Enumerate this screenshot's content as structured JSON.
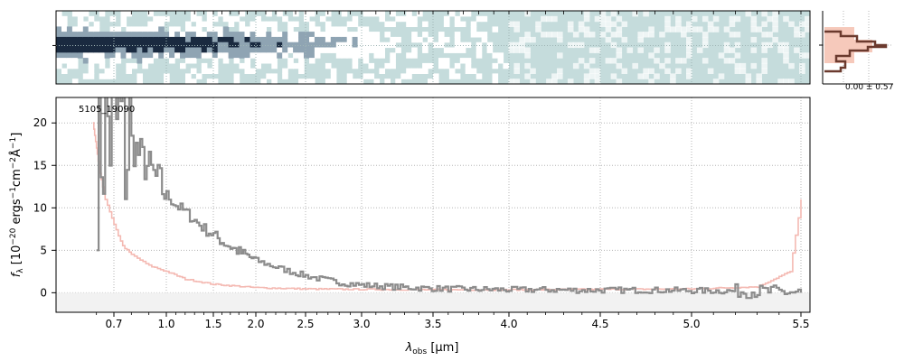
{
  "chart_data": [
    {
      "type": "heatmap",
      "description_role": "2D spectrum image",
      "colormap_colors": [
        "#c5dcdc",
        "#ffffff",
        "#1a2a40"
      ]
    },
    {
      "type": "line",
      "description_role": "spatial profile",
      "annotation": "0.00 ± 0.57",
      "colors": {
        "profile": "#6b3a2e",
        "fill": "#f6c9bb"
      }
    },
    {
      "type": "line",
      "object_id": "5105_19090",
      "ylabel_prefix": "f",
      "ylabel_sub": "λ",
      "ylabel_units": "[10",
      "ylabel_parts": [
        "−20",
        " ergs",
        "−1",
        "cm",
        "−2",
        "Å",
        "−1",
        "]"
      ],
      "xlabel_main": "λ",
      "xlabel_sub": "obs",
      "xlabel_units": " [μm]",
      "x_ticks": [
        "0.7",
        "1.0",
        "1.5",
        "2.0",
        "2.5",
        "3.0",
        "3.5",
        "4.0",
        "4.5",
        "5.0",
        "5.5"
      ],
      "x_tick_values": [
        0.7,
        1.0,
        1.5,
        2.0,
        2.5,
        3.0,
        3.5,
        4.0,
        4.5,
        5.0,
        5.5
      ],
      "y_ticks": [
        "0",
        "5",
        "10",
        "15",
        "20"
      ],
      "y_tick_values": [
        0,
        5,
        10,
        15,
        20
      ],
      "ylim": [
        -2.3,
        23
      ],
      "xlim": [
        0.57,
        5.55
      ],
      "grid": true,
      "series": [
        {
          "role": "flux",
          "color": "#8c8c8c",
          "x": [
            0.6,
            0.65,
            0.7,
            0.75,
            0.8,
            0.85,
            0.9,
            0.95,
            1.0,
            1.1,
            1.2,
            1.3,
            1.4,
            1.5,
            1.6,
            1.7,
            1.8,
            1.9,
            2.0,
            2.2,
            2.4,
            2.6,
            2.8,
            3.0,
            3.2,
            3.4,
            3.6,
            3.8,
            4.0,
            4.2,
            4.4,
            4.6,
            4.8,
            5.0,
            5.2,
            5.4,
            5.5
          ],
          "y": [
            19,
            20,
            19.5,
            18.5,
            17.5,
            16,
            14.5,
            13,
            11.5,
            10.3,
            9.5,
            8.5,
            7.5,
            6.8,
            6.0,
            5.4,
            4.8,
            4.3,
            3.8,
            3.0,
            2.3,
            1.7,
            1.2,
            0.9,
            0.7,
            0.55,
            0.45,
            0.4,
            0.35,
            0.35,
            0.3,
            0.3,
            0.3,
            0.25,
            0.2,
            0.1,
            0.0
          ]
        },
        {
          "role": "error",
          "color": "#f4b9b2",
          "x": [
            0.58,
            0.6,
            0.62,
            0.65,
            0.7,
            0.75,
            0.8,
            0.9,
            1.0,
            1.2,
            1.5,
            2.0,
            2.5,
            3.0,
            3.5,
            4.0,
            4.5,
            5.0,
            5.3,
            5.45,
            5.5
          ],
          "y": [
            20,
            17,
            14,
            11,
            8,
            5.5,
            4.5,
            3.2,
            2.5,
            1.6,
            1.0,
            0.6,
            0.45,
            0.4,
            0.35,
            0.35,
            0.4,
            0.45,
            0.7,
            2.5,
            11
          ]
        }
      ]
    }
  ]
}
